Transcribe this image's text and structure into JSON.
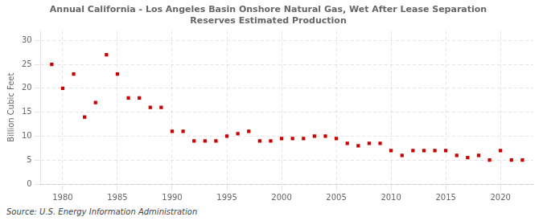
{
  "chart_data": {
    "type": "scatter",
    "title": "Annual California - Los Angeles Basin Onshore Natural Gas, Wet After Lease Separation\nReserves Estimated Production",
    "ylabel": "Billion Cubic Feet",
    "annotations": [
      "Source: U.S. Energy Information Administration"
    ],
    "x": [
      1979,
      1980,
      1981,
      1982,
      1983,
      1984,
      1985,
      1986,
      1987,
      1988,
      1989,
      1990,
      1991,
      1992,
      1993,
      1994,
      1995,
      1996,
      1997,
      1998,
      1999,
      2000,
      2001,
      2002,
      2003,
      2004,
      2005,
      2006,
      2007,
      2008,
      2009,
      2010,
      2011,
      2012,
      2013,
      2014,
      2015,
      2016,
      2017,
      2018,
      2019,
      2020,
      2021,
      2022
    ],
    "values": [
      25.0,
      20.0,
      23.0,
      14.0,
      17.0,
      27.0,
      23.0,
      18.0,
      18.0,
      16.0,
      16.0,
      11.0,
      11.0,
      9.0,
      9.0,
      9.0,
      10.0,
      10.5,
      11.0,
      9.0,
      9.0,
      9.5,
      9.5,
      9.5,
      10.0,
      10.0,
      9.5,
      8.5,
      8.0,
      8.5,
      8.5,
      7.0,
      6.0,
      7.0,
      7.0,
      7.0,
      7.0,
      6.0,
      5.5,
      6.0,
      5.0,
      7.0,
      5.0,
      5.0
    ],
    "color": "#cc0000",
    "marker": "square",
    "xlim": [
      1978,
      2023
    ],
    "xticks": [
      1980,
      1985,
      1990,
      1995,
      2000,
      2005,
      2010,
      2015,
      2020
    ],
    "ylim": [
      0,
      32
    ],
    "yticks": [
      0,
      5,
      10,
      15,
      20,
      25,
      30
    ],
    "grid": true
  }
}
